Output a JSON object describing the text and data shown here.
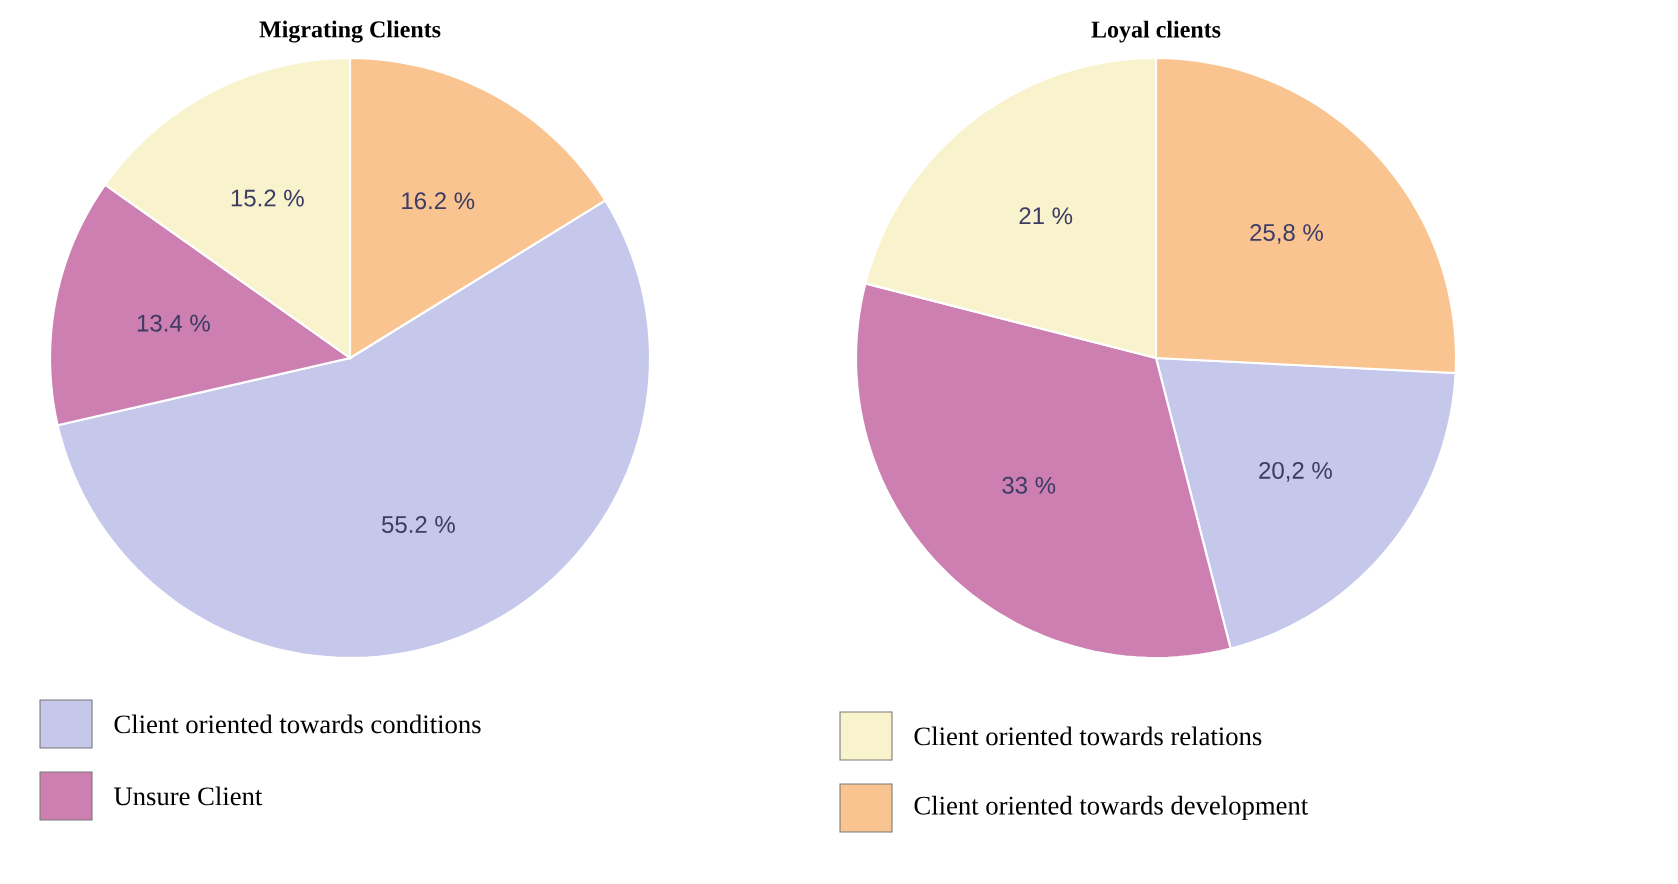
{
  "chart_data": [
    {
      "type": "pie",
      "title": "Migrating Clients",
      "categories": [
        "Client oriented towards conditions",
        "Unsure Client",
        "Client oriented towards relations",
        "Client oriented towards development"
      ],
      "values": [
        55.2,
        13.4,
        15.2,
        16.2
      ],
      "value_labels": [
        "55.2 %",
        "13.4 %",
        "15.2 %",
        "16.2 %"
      ],
      "colors": [
        "#c5c8ea",
        "#cc7fb0",
        "#f8f3cc",
        "#f9c48f"
      ],
      "legend": "bottom"
    },
    {
      "type": "pie",
      "title": "Loyal clients",
      "categories": [
        null,
        null,
        null,
        null
      ],
      "values": [
        20.2,
        33,
        21,
        25.8
      ],
      "value_labels": [
        "20,2 %",
        "33 %",
        "21 %",
        "25,8 %"
      ],
      "colors": [
        "#c5c8ea",
        "#cc7fb0",
        "#f8f3cc",
        "#f9c48f"
      ]
    }
  ]
}
